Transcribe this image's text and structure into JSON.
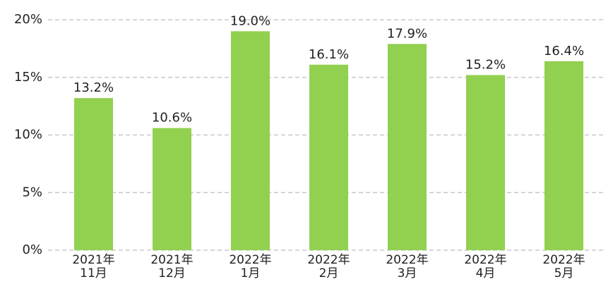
{
  "chart_data": {
    "type": "bar",
    "categories": [
      "2021年\n11月",
      "2021年\n12月",
      "2022年\n1月",
      "2022年\n2月",
      "2022年\n3月",
      "2022年\n4月",
      "2022年\n5月"
    ],
    "values": [
      13.2,
      10.6,
      19.0,
      16.1,
      17.9,
      15.2,
      16.4
    ],
    "value_labels": [
      "13.2%",
      "10.6%",
      "19.0%",
      "16.1%",
      "17.9%",
      "15.2%",
      "16.4%"
    ],
    "color": "#92d050",
    "ylim": [
      0,
      20
    ],
    "yticks": [
      {
        "value": 0,
        "label": "0%"
      },
      {
        "value": 5,
        "label": "5%"
      },
      {
        "value": 10,
        "label": "10%"
      },
      {
        "value": 15,
        "label": "15%"
      },
      {
        "value": 20,
        "label": "20%"
      }
    ],
    "grid": true
  }
}
